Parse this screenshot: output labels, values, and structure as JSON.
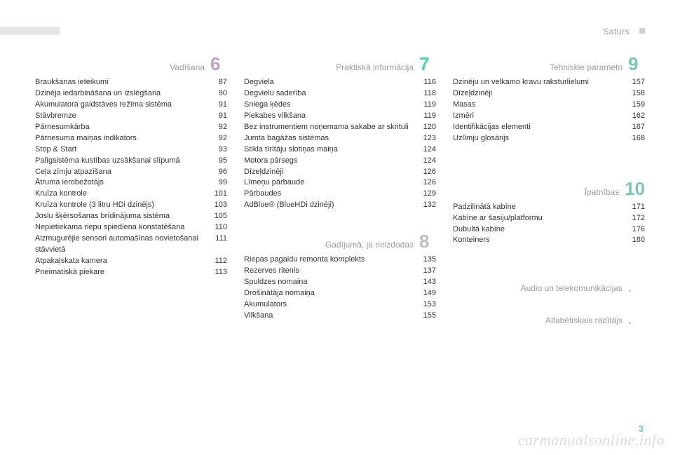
{
  "header": {
    "label": "Saturs"
  },
  "page_number": "3",
  "watermark": "carmanualsonline.info",
  "colors": {
    "grey": "#cfcfcf",
    "muted_text": "#9c9c9c",
    "body_text": "#333333",
    "accent6": "#b9a2c6",
    "accent7": "#4bd1b3",
    "accent8": "#bdbdbd",
    "accent9": "#7bc6b9",
    "accent10": "#7bc6b9",
    "accent_dot": "#bdbdbd"
  },
  "columns": [
    {
      "sections": [
        {
          "number": "6",
          "title": "Vadīšana",
          "rule_color": "#b9a2c6",
          "num_color": "#b9a2c6",
          "entries": [
            {
              "label": "Braukšanas ieteikumi",
              "page": "87"
            },
            {
              "label": "Dzinēja iedarbināšana un izslēgšana",
              "page": "90"
            },
            {
              "label": "Akumulatora gaidstāves režīma sistēma",
              "page": "91"
            },
            {
              "label": "Stāvbremze",
              "page": "91"
            },
            {
              "label": "Pārnesumkārba",
              "page": "92"
            },
            {
              "label": "Pārnesuma maiņas indikators",
              "page": "92"
            },
            {
              "label": "Stop & Start",
              "page": "93"
            },
            {
              "label": "Palīgsistēma kustības uzsākšanai slīpumā",
              "page": "95"
            },
            {
              "label": "Ceļa zīmju atpazīšana",
              "page": "96"
            },
            {
              "label": "Ātruma ierobežotājs",
              "page": "99"
            },
            {
              "label": "Kruīza kontrole",
              "page": "101"
            },
            {
              "label": "Kruīza kontrole (3 litru HDi dzinējs)",
              "page": "103"
            },
            {
              "label": "Joslu šķērsošanas brīdinājuma sistēma",
              "page": "105"
            },
            {
              "label": "Nepietiekama riepu spiediena konstatēšana",
              "page": "110"
            },
            {
              "label": "Aizmugurējie sensori automašīnas novietošanai stāvvietā",
              "page": "111"
            },
            {
              "label": "Atpakaļskata kamera",
              "page": "112"
            },
            {
              "label": "Pneimatiskā piekare",
              "page": "113"
            }
          ]
        }
      ]
    },
    {
      "sections": [
        {
          "number": "7",
          "title": "Praktiskā informācija",
          "rule_color": "#4bd1b3",
          "num_color": "#4bd1b3",
          "entries": [
            {
              "label": "Degviela",
              "page": "116"
            },
            {
              "label": "Degvielu saderība",
              "page": "118"
            },
            {
              "label": "Sniega ķēdes",
              "page": "119"
            },
            {
              "label": "Piekabes vilkšana",
              "page": "119"
            },
            {
              "label": "Bez instrumentiem noņemama sakabe ar skrituli",
              "page": "120"
            },
            {
              "label": "Jumta bagāžas sistēmas",
              "page": "123"
            },
            {
              "label": "Stikla tīrītāju slotiņas maiņa",
              "page": "124"
            },
            {
              "label": "Motora pārsegs",
              "page": "124"
            },
            {
              "label": "Dīzeļdzinēji",
              "page": "126"
            },
            {
              "label": "Līmeņu pārbaude",
              "page": "126"
            },
            {
              "label": "Pārbaudes",
              "page": "129"
            },
            {
              "label": "AdBlue® (BlueHDi dzinēji)",
              "page": "132"
            }
          ]
        },
        {
          "number": "8",
          "title": "Gadījumā, ja neizdodas",
          "rule_color": "#cfcfcf",
          "num_color": "#bdbdbd",
          "entries": [
            {
              "label": "Riepas pagaidu remonta komplekts",
              "page": "135"
            },
            {
              "label": "Rezerves ritenis",
              "page": "137"
            },
            {
              "label": "Spuldzes nomaiņa",
              "page": "143"
            },
            {
              "label": "Drošinātāja nomaiņa",
              "page": "149"
            },
            {
              "label": "Akumulators",
              "page": "153"
            },
            {
              "label": "Vilkšana",
              "page": "155"
            }
          ]
        }
      ]
    },
    {
      "sections": [
        {
          "number": "9",
          "title": "Tehniskie parametri",
          "rule_color": "#7bc6b9",
          "num_color": "#7bc6b9",
          "entries": [
            {
              "label": "Dzinēju un velkamo kravu raksturlielumi",
              "page": "157"
            },
            {
              "label": "Dīzeļdzinēji",
              "page": "158"
            },
            {
              "label": "Masas",
              "page": "159"
            },
            {
              "label": "Izmēri",
              "page": "162"
            },
            {
              "label": "Identifikācijas elementi",
              "page": "167"
            },
            {
              "label": "Uzlīmju glosārijs",
              "page": "168"
            }
          ]
        },
        {
          "number": "10",
          "title": "Īpatnības",
          "rule_color": "#7bc6b9",
          "num_color": "#7bc6b9",
          "entries": [
            {
              "label": "Padziļinātā kabīne",
              "page": "171"
            },
            {
              "label": "Kabīne ar šasiju/platformu",
              "page": "172"
            },
            {
              "label": "Dubultā kabīne",
              "page": "176"
            },
            {
              "label": "Konteiners",
              "page": "180"
            }
          ]
        },
        {
          "number": ".",
          "title": "Audio un telekomunikācijas",
          "rule_color": "#cfcfcf",
          "num_color": "#bdbdbd",
          "entries": []
        },
        {
          "number": ".",
          "title": "Alfabētiskais rādītājs",
          "rule_color": "#cfcfcf",
          "num_color": "#bdbdbd",
          "entries": []
        }
      ]
    }
  ]
}
